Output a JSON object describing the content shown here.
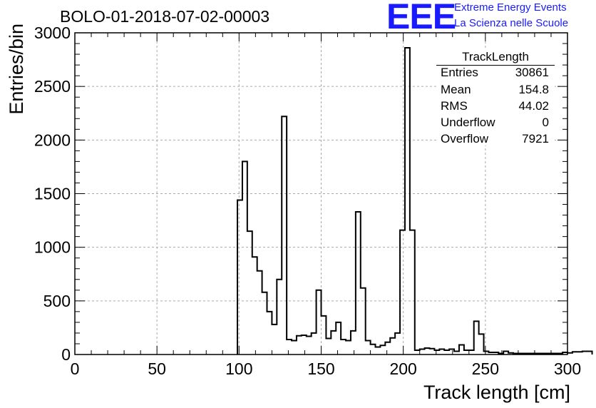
{
  "title": "BOLO-01-2018-07-02-00003",
  "logo": {
    "text": "EEE",
    "line1": "Extreme Energy Events",
    "line2": "La Scienza nelle Scuole",
    "color": "#1a1aff"
  },
  "stats": {
    "name": "TrackLength",
    "rows": [
      {
        "label": "Entries",
        "value": "30861"
      },
      {
        "label": "Mean",
        "value": "154.8"
      },
      {
        "label": "RMS",
        "value": "44.02"
      },
      {
        "label": "Underflow",
        "value": "0"
      },
      {
        "label": "Overflow",
        "value": "7921"
      }
    ]
  },
  "chart_data": {
    "type": "histogram",
    "title": "BOLO-01-2018-07-02-00003",
    "xlabel": "Track length [cm]",
    "ylabel": "Entries/bin",
    "xlim": [
      0,
      300
    ],
    "ylim": [
      0,
      3000
    ],
    "grid": true,
    "bin_width": 3,
    "x_ticks": [
      0,
      50,
      100,
      150,
      200,
      250,
      300
    ],
    "y_ticks": [
      0,
      500,
      1000,
      1500,
      2000,
      2500,
      3000
    ],
    "bins_start": 99,
    "values": [
      1440,
      1800,
      1150,
      910,
      780,
      580,
      400,
      280,
      700,
      2220,
      140,
      130,
      175,
      180,
      170,
      200,
      600,
      360,
      150,
      220,
      300,
      140,
      130,
      220,
      1330,
      620,
      130,
      95,
      70,
      85,
      115,
      155,
      200,
      1160,
      2860,
      1160,
      40,
      50,
      60,
      55,
      40,
      50,
      40,
      50,
      30,
      90,
      40,
      40,
      310,
      190,
      30,
      20,
      20,
      10,
      30,
      15,
      10,
      10,
      10,
      10,
      10,
      10,
      10,
      10,
      10,
      10,
      20,
      15,
      25,
      25,
      30,
      30
    ]
  }
}
